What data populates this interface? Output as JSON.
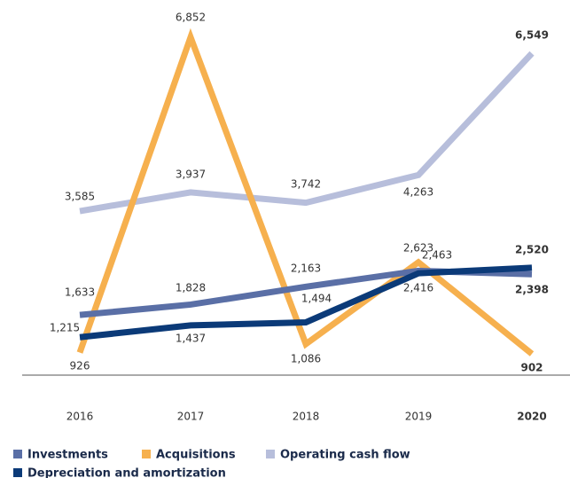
{
  "chart_data": {
    "type": "line",
    "categories": [
      "2016",
      "2017",
      "2018",
      "2019",
      "2020"
    ],
    "series": [
      {
        "name": "Operating cash flow",
        "color": "#b7bedb",
        "values": [
          3585,
          3937,
          3742,
          4263,
          6549
        ],
        "value_labels": [
          "3,585",
          "3,937",
          "3,742",
          "4,263",
          "6,549"
        ]
      },
      {
        "name": "Acquisitions",
        "color": "#f6b04e",
        "values": [
          926,
          6852,
          1086,
          2623,
          902
        ],
        "value_labels": [
          "926",
          "6,852",
          "1,086",
          "2,623",
          "902"
        ]
      },
      {
        "name": "Investments",
        "color": "#5a6fa6",
        "values": [
          1633,
          1828,
          2163,
          2463,
          2398
        ],
        "value_labels": [
          "1,633",
          "1,828",
          "2,163",
          "2,463",
          "2,398"
        ]
      },
      {
        "name": "Depreciation and amortization",
        "color": "#0b3a78",
        "values": [
          1215,
          1437,
          1494,
          2416,
          2520
        ],
        "value_labels": [
          "1,215",
          "1,437",
          "1,494",
          "2,416",
          "2,520"
        ]
      }
    ]
  }
}
